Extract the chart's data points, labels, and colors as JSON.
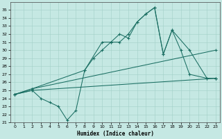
{
  "xlabel": "Humidex (Indice chaleur)",
  "xlim": [
    0,
    23
  ],
  "ylim": [
    21,
    36
  ],
  "bg_color": "#c5e8e3",
  "grid_color": "#a2cfc8",
  "line_color": "#1a6e62",
  "line1_x": [
    0,
    2,
    23
  ],
  "line1_y": [
    24.5,
    25.0,
    26.5
  ],
  "line2_x": [
    0,
    2,
    23
  ],
  "line2_y": [
    24.5,
    25.2,
    30.0
  ],
  "line3_x": [
    0,
    2,
    3,
    4,
    5,
    6,
    7,
    8,
    10,
    11,
    12,
    13,
    14,
    15,
    16,
    17,
    18,
    19,
    20,
    22,
    23
  ],
  "line3_y": [
    24.5,
    25.0,
    24.0,
    23.5,
    23.0,
    21.3,
    22.5,
    27.5,
    31.0,
    31.0,
    32.0,
    31.5,
    33.5,
    34.5,
    35.3,
    29.5,
    32.5,
    30.0,
    27.0,
    26.5,
    26.5
  ],
  "line4_x": [
    0,
    2,
    8,
    9,
    10,
    11,
    12,
    13,
    14,
    15,
    16,
    17,
    18,
    20,
    22,
    23
  ],
  "line4_y": [
    24.5,
    25.2,
    27.5,
    29.0,
    30.0,
    31.0,
    31.0,
    32.0,
    33.5,
    34.5,
    35.3,
    29.5,
    32.5,
    30.0,
    26.5,
    26.5
  ],
  "xticks": [
    0,
    1,
    2,
    3,
    4,
    5,
    6,
    7,
    8,
    9,
    10,
    11,
    12,
    13,
    14,
    15,
    16,
    17,
    18,
    19,
    20,
    21,
    22,
    23
  ],
  "yticks": [
    21,
    22,
    23,
    24,
    25,
    26,
    27,
    28,
    29,
    30,
    31,
    32,
    33,
    34,
    35
  ]
}
